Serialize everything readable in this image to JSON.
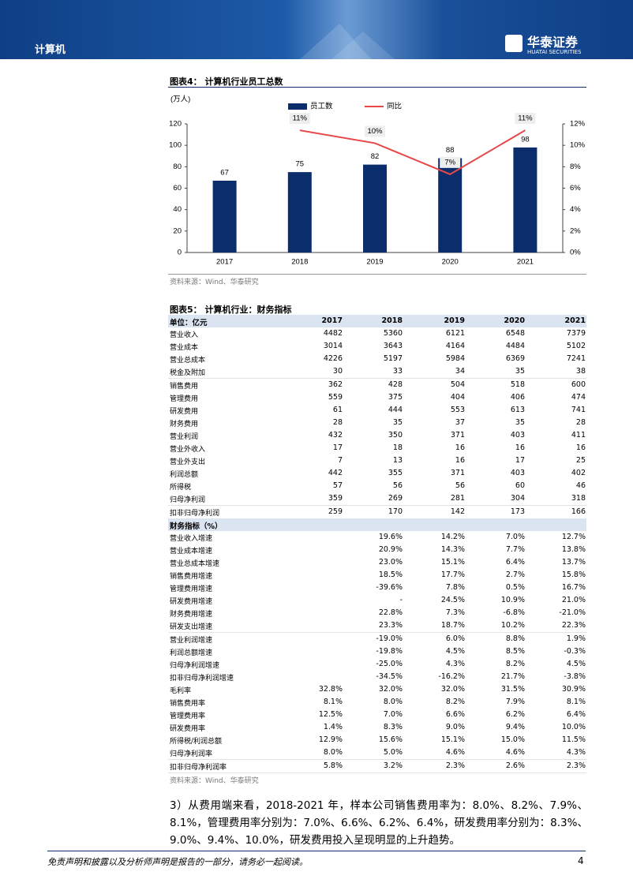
{
  "header": {
    "section": "计算机",
    "brand": "华泰证券",
    "brand_en": "HUATAI SECURITIES"
  },
  "figure4": {
    "title": "图表4：  计算机行业员工总数",
    "source": "资料来源：Wind、华泰研究"
  },
  "chart_data": {
    "type": "bar",
    "y_label": "(万人)",
    "categories": [
      "2017",
      "2018",
      "2019",
      "2020",
      "2021"
    ],
    "series": [
      {
        "name": "员工数",
        "color": "#0b2d6b",
        "values": [
          67,
          75,
          82,
          88,
          98
        ]
      },
      {
        "name": "同比",
        "color": "#e8474a",
        "type": "line",
        "axis": "y2",
        "values": [
          null,
          11.4,
          10.2,
          7.3,
          11.4
        ],
        "value_labels": [
          null,
          "11%",
          "10%",
          "7%",
          "11%"
        ]
      }
    ],
    "ylim": [
      0,
      120
    ],
    "yticks": [
      0,
      20,
      40,
      60,
      80,
      100,
      120
    ],
    "y2lim": [
      0,
      12
    ],
    "y2ticks": [
      {
        "value": 0,
        "label": "0%"
      },
      {
        "value": 2,
        "label": "2%"
      },
      {
        "value": 4,
        "label": "4%"
      },
      {
        "value": 6,
        "label": "6%"
      },
      {
        "value": 8,
        "label": "8%"
      },
      {
        "value": 10,
        "label": "10%"
      },
      {
        "value": 12,
        "label": "12%"
      }
    ]
  },
  "figure5": {
    "title": "图表5：  计算机行业：财务指标",
    "source": "资料来源：Wind、华泰研究"
  },
  "table": {
    "header": [
      "单位：亿元",
      "2017",
      "2018",
      "2019",
      "2020",
      "2021"
    ],
    "rows": [
      [
        "营业收入",
        "4482",
        "5360",
        "6121",
        "6548",
        "7379"
      ],
      [
        "营业成本",
        "3014",
        "3643",
        "4164",
        "4484",
        "5102"
      ],
      [
        "营业总成本",
        "4226",
        "5197",
        "5984",
        "6369",
        "7241"
      ],
      [
        "税金及附加",
        "30",
        "33",
        "34",
        "35",
        "38"
      ],
      [
        "销售费用",
        "362",
        "428",
        "504",
        "518",
        "600"
      ],
      [
        "管理费用",
        "559",
        "375",
        "404",
        "406",
        "474"
      ],
      [
        "研发费用",
        "61",
        "444",
        "553",
        "613",
        "741"
      ],
      [
        "财务费用",
        "28",
        "35",
        "37",
        "35",
        "28"
      ],
      [
        "营业利润",
        "432",
        "350",
        "371",
        "403",
        "411"
      ],
      [
        "营业外收入",
        "17",
        "18",
        "16",
        "16",
        "16"
      ],
      [
        "营业外支出",
        "7",
        "13",
        "16",
        "17",
        "25"
      ],
      [
        "利润总额",
        "442",
        "355",
        "371",
        "403",
        "402"
      ],
      [
        "所得税",
        "57",
        "56",
        "56",
        "60",
        "46"
      ],
      [
        "归母净利润",
        "359",
        "269",
        "281",
        "304",
        "318"
      ],
      [
        "扣非归母净利润",
        "259",
        "170",
        "142",
        "173",
        "166"
      ],
      [
        "财务指标（%）"
      ],
      [
        "营业收入增速",
        null,
        "19.6%",
        "14.2%",
        "7.0%",
        "12.7%"
      ],
      [
        "营业成本增速",
        null,
        "20.9%",
        "14.3%",
        "7.7%",
        "13.8%"
      ],
      [
        "营业总成本增速",
        null,
        "23.0%",
        "15.1%",
        "6.4%",
        "13.7%"
      ],
      [
        "销售费用增速",
        null,
        "18.5%",
        "17.7%",
        "2.7%",
        "15.8%"
      ],
      [
        "管理费用增速",
        null,
        "-39.6%",
        "7.8%",
        "0.5%",
        "16.7%"
      ],
      [
        "研发费用增速",
        null,
        "-",
        "24.5%",
        "10.9%",
        "21.0%"
      ],
      [
        "财务费用增速",
        null,
        "22.8%",
        "7.3%",
        "-6.8%",
        "-21.0%"
      ],
      [
        "研发支出增速",
        null,
        "23.3%",
        "18.7%",
        "10.2%",
        "22.3%"
      ],
      [
        "营业利润增速",
        null,
        "-19.0%",
        "6.0%",
        "8.8%",
        "1.9%"
      ],
      [
        "利润总额增速",
        null,
        "-19.8%",
        "4.5%",
        "8.5%",
        "-0.3%"
      ],
      [
        "归母净利润增速",
        null,
        "-25.0%",
        "4.3%",
        "8.2%",
        "4.5%"
      ],
      [
        "扣非归母净利润增速",
        null,
        "-34.5%",
        "-16.2%",
        "21.7%",
        "-3.8%"
      ],
      [
        "毛利率",
        "32.8%",
        "32.0%",
        "32.0%",
        "31.5%",
        "30.9%"
      ],
      [
        "销售费用率",
        "8.1%",
        "8.0%",
        "8.2%",
        "7.9%",
        "8.1%"
      ],
      [
        "管理费用率",
        "12.5%",
        "7.0%",
        "6.6%",
        "6.2%",
        "6.4%"
      ],
      [
        "研发费用率",
        "1.4%",
        "8.3%",
        "9.0%",
        "9.4%",
        "10.0%"
      ],
      [
        "所得税/利润总额",
        "12.9%",
        "15.6%",
        "15.1%",
        "15.0%",
        "11.5%"
      ],
      [
        "归母净利润率",
        "8.0%",
        "5.0%",
        "4.6%",
        "4.6%",
        "4.3%"
      ],
      [
        "扣非归母净利润率",
        "5.8%",
        "3.2%",
        "2.3%",
        "2.6%",
        "2.3%"
      ]
    ]
  },
  "paragraph": "3）从费用端来看，2018-2021 年，样本公司销售费用率为：8.0%、8.2%、7.9%、8.1%，管理费用率分别为：7.0%、6.6%、6.2%、6.4%，研发费用率分别为：8.3%、9.0%、9.4%、10.0%，研发费用投入呈现明显的上升趋势。",
  "footer": {
    "disclaimer": "免责声明和披露以及分析师声明是报告的一部分，请务必一起阅读。",
    "page": "4"
  }
}
